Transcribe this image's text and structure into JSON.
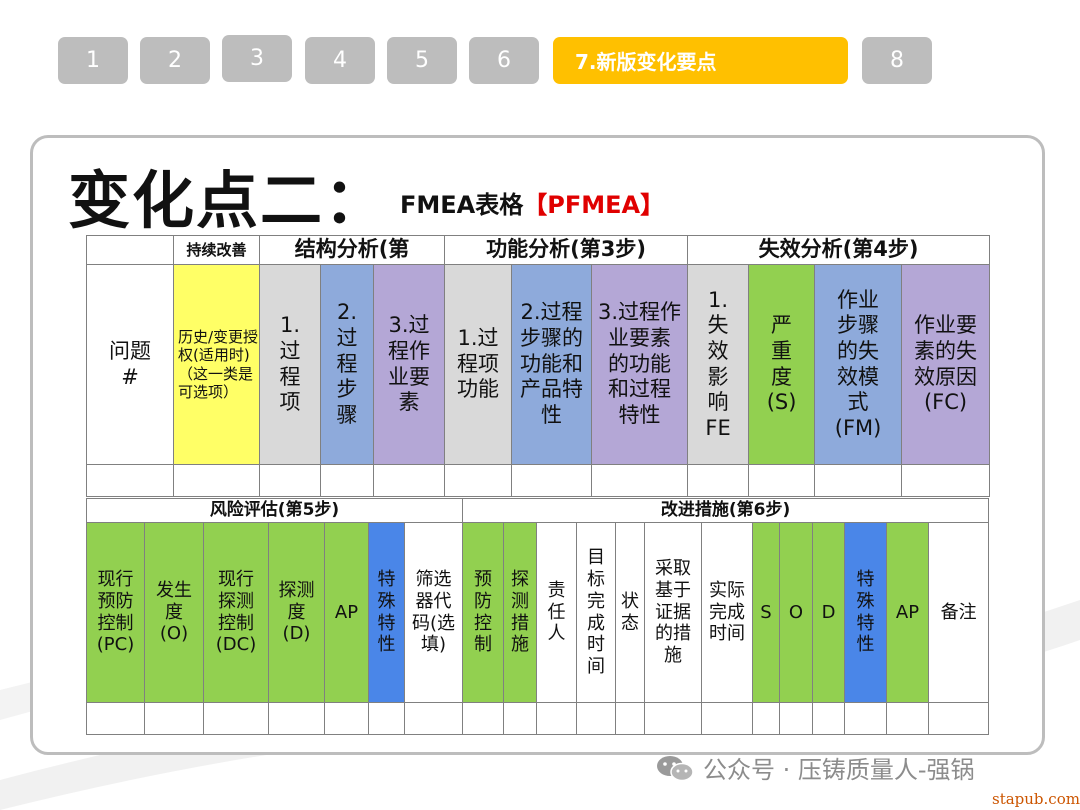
{
  "tabs": [
    {
      "label": "1"
    },
    {
      "label": "2"
    },
    {
      "label": "3"
    },
    {
      "label": "4"
    },
    {
      "label": "5"
    },
    {
      "label": "6"
    },
    {
      "label": "7.新版变化要点"
    },
    {
      "label": "8"
    }
  ],
  "title": {
    "main": "变化点二：",
    "sub_prefix": "FMEA表格",
    "sub_red": "【PFMEA】"
  },
  "table1": {
    "header": {
      "continuous": "持续改善",
      "structure": "结构分析(第",
      "function": "功能分析(第3步)",
      "failure": "失效分析(第4步)"
    },
    "cols": {
      "issue": "问题#",
      "history": "历史/变更授权(适用时)（这一类是可选项）",
      "proc_item": "1.过程项",
      "proc_step": "2.过程步骤",
      "proc_element": "3.过程作业要素",
      "func_item": "1.过程项功能",
      "func_step": "2.过程步骤的功能和产品特性",
      "func_element": "3.过程作业要素的功能和过程特性",
      "fe": "1.失效影响FE",
      "severity": "严重度(S)",
      "fm": "作业步骤的失效模式(FM)",
      "fc": "作业要素的失效原因(FC)"
    }
  },
  "table2": {
    "header": {
      "risk": "风险评估(第5步)",
      "improve": "改进措施(第6步)"
    },
    "cols": {
      "pc": "现行预防控制(PC)",
      "occurrence": "发生度(O)",
      "dc": "现行探测控制(DC)",
      "detection": "探测度(D)",
      "ap": "AP",
      "special": "特殊特性",
      "filter": "筛选器代码(选填)",
      "prevent": "预防控制",
      "detect": "探测措施",
      "owner": "责任人",
      "target_time": "目标完成时间",
      "status": "状态",
      "evidence": "采取基于证据的措施",
      "actual_time": "实际完成时间",
      "s": "S",
      "o": "O",
      "d": "D",
      "special2": "特殊特性",
      "ap2": "AP",
      "remark": "备注"
    }
  },
  "watermark": "公众号 · 压铸质量人-强锅",
  "site": "stapub.com",
  "colors": {
    "active_tab": "#ffc000",
    "inactive_tab": "#bdbdbd",
    "red": "#e00000"
  }
}
